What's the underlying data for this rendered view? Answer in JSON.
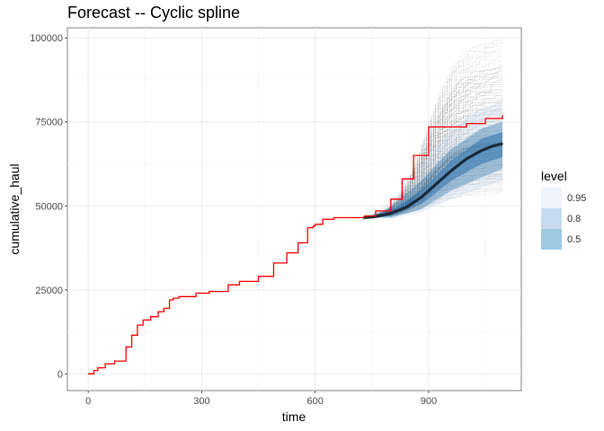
{
  "chart_data": {
    "type": "line",
    "title": "Forecast -- Cyclic spline",
    "xlabel": "time",
    "ylabel": "cumulative_haul",
    "xlim": [
      -55,
      1145
    ],
    "ylim": [
      -5000,
      103000
    ],
    "x_ticks": [
      0,
      300,
      600,
      900
    ],
    "x_tick_labels": [
      "0",
      "300",
      "600",
      "900"
    ],
    "y_ticks": [
      0,
      25000,
      50000,
      75000,
      100000
    ],
    "y_tick_labels": [
      "0",
      "25000",
      "50000",
      "75000",
      "100000"
    ],
    "grid": true,
    "legend": {
      "title": "level",
      "placement": "right",
      "items": [
        {
          "label": "0.95",
          "color": "#eff3fb"
        },
        {
          "label": "0.8",
          "color": "#c6dbef"
        },
        {
          "label": "0.5",
          "color": "#9ecae1"
        }
      ]
    },
    "series": [
      {
        "role": "observed",
        "color": "#ff0000",
        "x": [
          0,
          15,
          25,
          45,
          70,
          100,
          115,
          130,
          145,
          165,
          185,
          200,
          215,
          225,
          240,
          285,
          320,
          370,
          400,
          450,
          490,
          525,
          555,
          580,
          595,
          600,
          620,
          650,
          680,
          730,
          760,
          800,
          830,
          860,
          900,
          950,
          1000,
          1050,
          1095
        ],
        "y": [
          0,
          1000,
          1800,
          3000,
          3800,
          8000,
          11500,
          14500,
          16000,
          17000,
          18500,
          19500,
          22000,
          22500,
          23000,
          24000,
          24500,
          26500,
          27500,
          29000,
          33000,
          36000,
          39000,
          43500,
          44000,
          44500,
          46000,
          46500,
          46500,
          47000,
          48500,
          52000,
          58000,
          65000,
          73500,
          73500,
          74500,
          76000,
          77000
        ]
      },
      {
        "role": "forecast-median",
        "color": "#1a2a3a",
        "x": [
          730,
          760,
          800,
          840,
          880,
          920,
          960,
          1000,
          1040,
          1070,
          1095
        ],
        "y": [
          46500,
          46800,
          47800,
          49500,
          52500,
          56500,
          60500,
          64000,
          66500,
          67800,
          68500
        ]
      }
    ],
    "bands": [
      {
        "level": "0.95",
        "color": "#eff3fb",
        "x": [
          730,
          800,
          880,
          960,
          1040,
          1095
        ],
        "lower": [
          46500,
          46000,
          48000,
          52000,
          55500,
          57500
        ],
        "upper": [
          46500,
          51000,
          62000,
          73000,
          79000,
          81000
        ]
      },
      {
        "level": "0.8",
        "color": "#c6dbef",
        "x": [
          730,
          800,
          880,
          960,
          1040,
          1095
        ],
        "lower": [
          46500,
          46500,
          49000,
          54500,
          58500,
          61000
        ],
        "upper": [
          46500,
          49500,
          57500,
          67000,
          73000,
          75000
        ]
      },
      {
        "level": "0.5",
        "color": "#9ecae1",
        "x": [
          730,
          800,
          880,
          960,
          1040,
          1095
        ],
        "lower": [
          46500,
          47000,
          50500,
          57500,
          62500,
          64500
        ],
        "upper": [
          46500,
          48600,
          54500,
          63500,
          70000,
          72000
        ]
      }
    ],
    "sample_paths": {
      "count": 140,
      "color": "#000000",
      "x_start": 730,
      "x_end": 1095,
      "y_start": 46500,
      "y_end_range": [
        53000,
        100000
      ]
    }
  }
}
